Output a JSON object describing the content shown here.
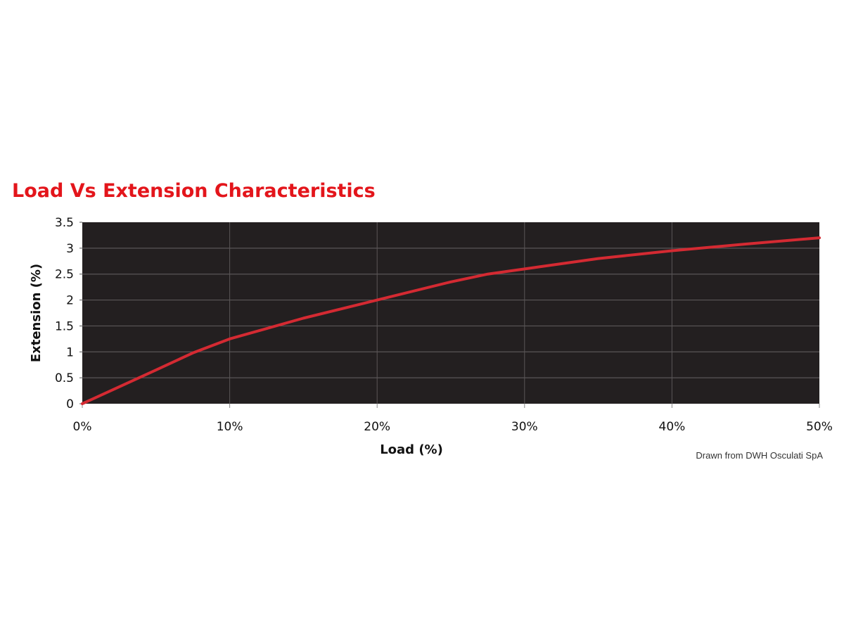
{
  "chart_data": {
    "type": "line",
    "title": "Load Vs Extension Characteristics",
    "xlabel": "Load (%)",
    "ylabel": "Extension (%)",
    "xlim": [
      0,
      50
    ],
    "ylim": [
      0,
      3.5
    ],
    "x_ticks": [
      "0%",
      "10%",
      "20%",
      "30%",
      "40%",
      "50%"
    ],
    "x_tick_values": [
      0,
      10,
      20,
      30,
      40,
      50
    ],
    "y_ticks": [
      "0",
      "0.5",
      "1",
      "1.5",
      "2",
      "2.5",
      "3",
      "3.5"
    ],
    "y_tick_values": [
      0,
      0.5,
      1,
      1.5,
      2,
      2.5,
      3,
      3.5
    ],
    "grid": true,
    "legend": "none",
    "series": [
      {
        "x": [
          0,
          5,
          7.5,
          10,
          15,
          20,
          25,
          27.5,
          30,
          35,
          40,
          45,
          50
        ],
        "y": [
          0,
          0.65,
          0.98,
          1.25,
          1.65,
          2.0,
          2.35,
          2.5,
          2.6,
          2.8,
          2.95,
          3.08,
          3.2
        ],
        "color": "#d42a32"
      }
    ],
    "colors": {
      "plot_background": "#231f20",
      "grid": "#5a5657",
      "title": "#e3151b"
    }
  },
  "credit": "Drawn from DWH Osculati SpA"
}
